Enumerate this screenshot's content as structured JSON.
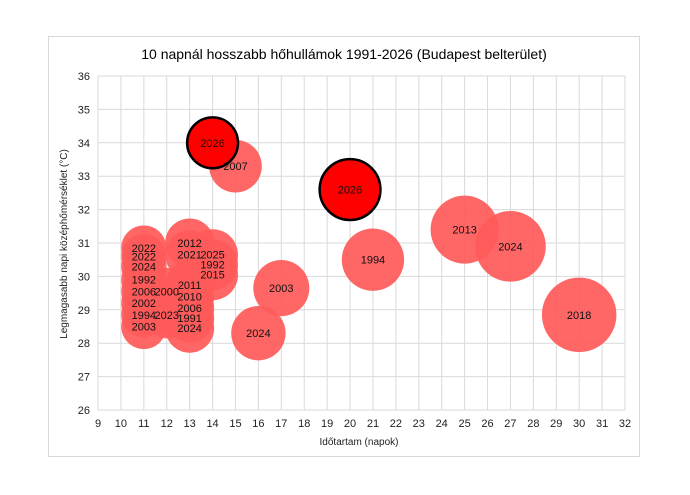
{
  "chart_data": {
    "type": "bubble",
    "title": "10 napnál hosszabb hőhullámok 1991-2026 (Budapest belterület)",
    "xlabel": "Időtartam (napok)",
    "ylabel": "Legmagasabb napi középhőmérséklet (°C)",
    "xlim": [
      9,
      32
    ],
    "ylim": [
      26,
      36
    ],
    "x_ticks": [
      "9",
      "10",
      "11",
      "12",
      "13",
      "14",
      "15",
      "16",
      "17",
      "18",
      "19",
      "20",
      "21",
      "22",
      "23",
      "24",
      "25",
      "26",
      "27",
      "28",
      "29",
      "30",
      "31",
      "32"
    ],
    "y_ticks": [
      "26",
      "27",
      "28",
      "29",
      "30",
      "31",
      "32",
      "33",
      "34",
      "35",
      "36"
    ],
    "grid": true,
    "colors": {
      "bubble": "#ff5a5a",
      "highlight": "#ff0000",
      "highlight_edge": "#000000",
      "grid": "#d9d9d9"
    },
    "points": [
      {
        "label": "2026",
        "x": 14,
        "y": 34.0,
        "size": 14,
        "highlight": true
      },
      {
        "label": "2007",
        "x": 15,
        "y": 33.3,
        "size": 15
      },
      {
        "label": "2026",
        "x": 20,
        "y": 32.6,
        "size": 20,
        "highlight": true
      },
      {
        "label": "2013",
        "x": 25,
        "y": 31.4,
        "size": 25
      },
      {
        "label": "2024",
        "x": 27,
        "y": 30.9,
        "size": 27
      },
      {
        "label": "1994",
        "x": 21,
        "y": 30.5,
        "size": 21
      },
      {
        "label": "2018",
        "x": 30,
        "y": 28.85,
        "size": 30
      },
      {
        "label": "2003",
        "x": 17,
        "y": 29.65,
        "size": 17
      },
      {
        "label": "2024",
        "x": 16,
        "y": 28.3,
        "size": 16
      },
      {
        "label": "2022",
        "x": 11,
        "y": 30.85,
        "size": 11
      },
      {
        "label": "2022",
        "x": 11,
        "y": 30.6,
        "size": 11
      },
      {
        "label": "2024",
        "x": 11,
        "y": 30.3,
        "size": 11
      },
      {
        "label": "1992",
        "x": 11,
        "y": 29.9,
        "size": 11
      },
      {
        "label": "2006",
        "x": 11,
        "y": 29.55,
        "size": 11
      },
      {
        "label": "2002",
        "x": 11,
        "y": 29.2,
        "size": 11
      },
      {
        "label": "1994",
        "x": 11,
        "y": 28.85,
        "size": 11
      },
      {
        "label": "2003",
        "x": 11,
        "y": 28.5,
        "size": 11
      },
      {
        "label": "2000",
        "x": 12,
        "y": 29.55,
        "size": 12
      },
      {
        "label": "2023",
        "x": 12,
        "y": 28.85,
        "size": 12
      },
      {
        "label": "2012",
        "x": 13,
        "y": 31.0,
        "size": 13
      },
      {
        "label": "2021",
        "x": 13,
        "y": 30.65,
        "size": 13
      },
      {
        "label": "2011",
        "x": 13,
        "y": 29.75,
        "size": 13
      },
      {
        "label": "2010",
        "x": 13,
        "y": 29.4,
        "size": 13
      },
      {
        "label": "2006",
        "x": 13,
        "y": 29.05,
        "size": 13
      },
      {
        "label": "1991",
        "x": 13,
        "y": 28.75,
        "size": 13
      },
      {
        "label": "2024",
        "x": 13,
        "y": 28.45,
        "size": 13
      },
      {
        "label": "2025",
        "x": 14,
        "y": 30.65,
        "size": 14
      },
      {
        "label": "1992",
        "x": 14,
        "y": 30.35,
        "size": 14
      },
      {
        "label": "2015",
        "x": 14,
        "y": 30.05,
        "size": 14
      }
    ]
  }
}
